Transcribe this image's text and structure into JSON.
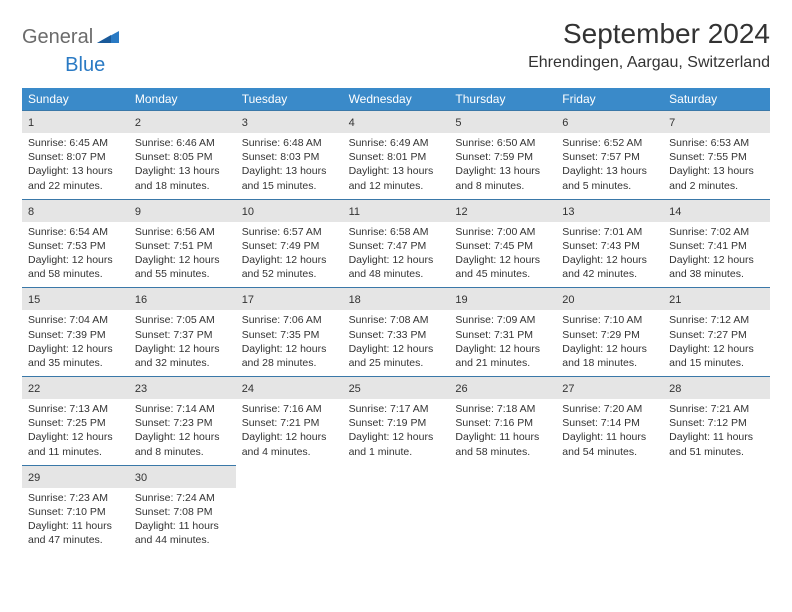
{
  "logo": {
    "part1": "General",
    "part2": "Blue"
  },
  "title": "September 2024",
  "location": "Ehrendingen, Aargau, Switzerland",
  "colors": {
    "header_bg": "#3a8ac9",
    "header_text": "#ffffff",
    "daynum_bg": "#e5e5e5",
    "border": "#3a78a8",
    "logo_gray": "#6b6b6b",
    "logo_blue": "#2a7ac4",
    "background": "#ffffff"
  },
  "fonts": {
    "title_size": 28,
    "location_size": 16,
    "header_size": 12,
    "body_size": 10.5
  },
  "weekdays": [
    "Sunday",
    "Monday",
    "Tuesday",
    "Wednesday",
    "Thursday",
    "Friday",
    "Saturday"
  ],
  "days": [
    {
      "n": 1,
      "sunrise": "6:45 AM",
      "sunset": "8:07 PM",
      "daylight": "13 hours and 22 minutes."
    },
    {
      "n": 2,
      "sunrise": "6:46 AM",
      "sunset": "8:05 PM",
      "daylight": "13 hours and 18 minutes."
    },
    {
      "n": 3,
      "sunrise": "6:48 AM",
      "sunset": "8:03 PM",
      "daylight": "13 hours and 15 minutes."
    },
    {
      "n": 4,
      "sunrise": "6:49 AM",
      "sunset": "8:01 PM",
      "daylight": "13 hours and 12 minutes."
    },
    {
      "n": 5,
      "sunrise": "6:50 AM",
      "sunset": "7:59 PM",
      "daylight": "13 hours and 8 minutes."
    },
    {
      "n": 6,
      "sunrise": "6:52 AM",
      "sunset": "7:57 PM",
      "daylight": "13 hours and 5 minutes."
    },
    {
      "n": 7,
      "sunrise": "6:53 AM",
      "sunset": "7:55 PM",
      "daylight": "13 hours and 2 minutes."
    },
    {
      "n": 8,
      "sunrise": "6:54 AM",
      "sunset": "7:53 PM",
      "daylight": "12 hours and 58 minutes."
    },
    {
      "n": 9,
      "sunrise": "6:56 AM",
      "sunset": "7:51 PM",
      "daylight": "12 hours and 55 minutes."
    },
    {
      "n": 10,
      "sunrise": "6:57 AM",
      "sunset": "7:49 PM",
      "daylight": "12 hours and 52 minutes."
    },
    {
      "n": 11,
      "sunrise": "6:58 AM",
      "sunset": "7:47 PM",
      "daylight": "12 hours and 48 minutes."
    },
    {
      "n": 12,
      "sunrise": "7:00 AM",
      "sunset": "7:45 PM",
      "daylight": "12 hours and 45 minutes."
    },
    {
      "n": 13,
      "sunrise": "7:01 AM",
      "sunset": "7:43 PM",
      "daylight": "12 hours and 42 minutes."
    },
    {
      "n": 14,
      "sunrise": "7:02 AM",
      "sunset": "7:41 PM",
      "daylight": "12 hours and 38 minutes."
    },
    {
      "n": 15,
      "sunrise": "7:04 AM",
      "sunset": "7:39 PM",
      "daylight": "12 hours and 35 minutes."
    },
    {
      "n": 16,
      "sunrise": "7:05 AM",
      "sunset": "7:37 PM",
      "daylight": "12 hours and 32 minutes."
    },
    {
      "n": 17,
      "sunrise": "7:06 AM",
      "sunset": "7:35 PM",
      "daylight": "12 hours and 28 minutes."
    },
    {
      "n": 18,
      "sunrise": "7:08 AM",
      "sunset": "7:33 PM",
      "daylight": "12 hours and 25 minutes."
    },
    {
      "n": 19,
      "sunrise": "7:09 AM",
      "sunset": "7:31 PM",
      "daylight": "12 hours and 21 minutes."
    },
    {
      "n": 20,
      "sunrise": "7:10 AM",
      "sunset": "7:29 PM",
      "daylight": "12 hours and 18 minutes."
    },
    {
      "n": 21,
      "sunrise": "7:12 AM",
      "sunset": "7:27 PM",
      "daylight": "12 hours and 15 minutes."
    },
    {
      "n": 22,
      "sunrise": "7:13 AM",
      "sunset": "7:25 PM",
      "daylight": "12 hours and 11 minutes."
    },
    {
      "n": 23,
      "sunrise": "7:14 AM",
      "sunset": "7:23 PM",
      "daylight": "12 hours and 8 minutes."
    },
    {
      "n": 24,
      "sunrise": "7:16 AM",
      "sunset": "7:21 PM",
      "daylight": "12 hours and 4 minutes."
    },
    {
      "n": 25,
      "sunrise": "7:17 AM",
      "sunset": "7:19 PM",
      "daylight": "12 hours and 1 minute."
    },
    {
      "n": 26,
      "sunrise": "7:18 AM",
      "sunset": "7:16 PM",
      "daylight": "11 hours and 58 minutes."
    },
    {
      "n": 27,
      "sunrise": "7:20 AM",
      "sunset": "7:14 PM",
      "daylight": "11 hours and 54 minutes."
    },
    {
      "n": 28,
      "sunrise": "7:21 AM",
      "sunset": "7:12 PM",
      "daylight": "11 hours and 51 minutes."
    },
    {
      "n": 29,
      "sunrise": "7:23 AM",
      "sunset": "7:10 PM",
      "daylight": "11 hours and 47 minutes."
    },
    {
      "n": 30,
      "sunrise": "7:24 AM",
      "sunset": "7:08 PM",
      "daylight": "11 hours and 44 minutes."
    }
  ],
  "labels": {
    "sunrise": "Sunrise:",
    "sunset": "Sunset:",
    "daylight": "Daylight:"
  },
  "layout": {
    "start_weekday": 0,
    "weeks": 5,
    "cells_per_row": 7
  }
}
